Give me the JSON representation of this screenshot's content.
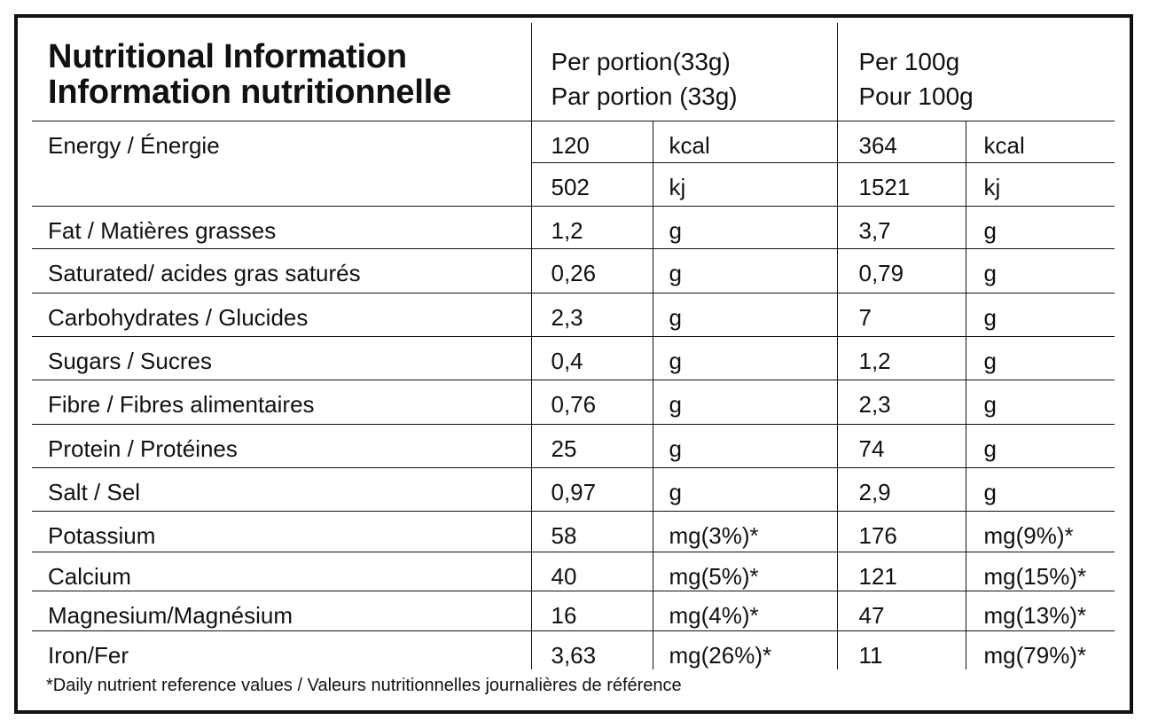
{
  "header": {
    "title_en": "Nutritional Information",
    "title_fr": "Information nutritionnelle",
    "portion_en": "Per portion(33g)",
    "portion_fr": "Par portion (33g)",
    "per100_en": "Per 100g",
    "per100_fr": "Pour 100g"
  },
  "energy": {
    "name": "Energy / Énergie",
    "portion_kcal": "120",
    "portion_kcal_unit": "kcal",
    "portion_kj": "502",
    "portion_kj_unit": "kj",
    "per100_kcal": "364",
    "per100_kcal_unit": "kcal",
    "per100_kj": "1521",
    "per100_kj_unit": "kj"
  },
  "rows": [
    {
      "name": "Fat / Matières grasses",
      "pv": "1,2",
      "pu": "g",
      "hv": "3,7",
      "hu": "g"
    },
    {
      "name": "Saturated/ acides gras saturés",
      "pv": "0,26",
      "pu": "g",
      "hv": "0,79",
      "hu": "g"
    },
    {
      "name": "Carbohydrates / Glucides",
      "pv": "2,3",
      "pu": "g",
      "hv": "7",
      "hu": "g"
    },
    {
      "name": "Sugars / Sucres",
      "pv": "0,4",
      "pu": "g",
      "hv": "1,2",
      "hu": "g"
    },
    {
      "name": "Fibre / Fibres alimentaires",
      "pv": "0,76",
      "pu": "g",
      "hv": "2,3",
      "hu": "g"
    },
    {
      "name": "Protein / Protéines",
      "pv": "25",
      "pu": "g",
      "hv": "74",
      "hu": "g"
    },
    {
      "name": "Salt / Sel",
      "pv": "0,97",
      "pu": "g",
      "hv": "2,9",
      "hu": "g"
    },
    {
      "name": "Potassium",
      "pv": "58",
      "pu": "mg(3%)*",
      "hv": "176",
      "hu": "mg(9%)*"
    },
    {
      "name": "Calcium",
      "pv": "40",
      "pu": "mg(5%)*",
      "hv": "121",
      "hu": "mg(15%)*"
    },
    {
      "name": "Magnesium/Magnésium",
      "pv": "16",
      "pu": "mg(4%)*",
      "hv": "47",
      "hu": "mg(13%)*"
    },
    {
      "name": "Iron/Fer",
      "pv": "3,63",
      "pu": "mg(26%)*",
      "hv": "11",
      "hu": "mg(79%)*"
    }
  ],
  "footnote": "*Daily nutrient reference values / Valeurs nutritionnelles journalières de référence"
}
